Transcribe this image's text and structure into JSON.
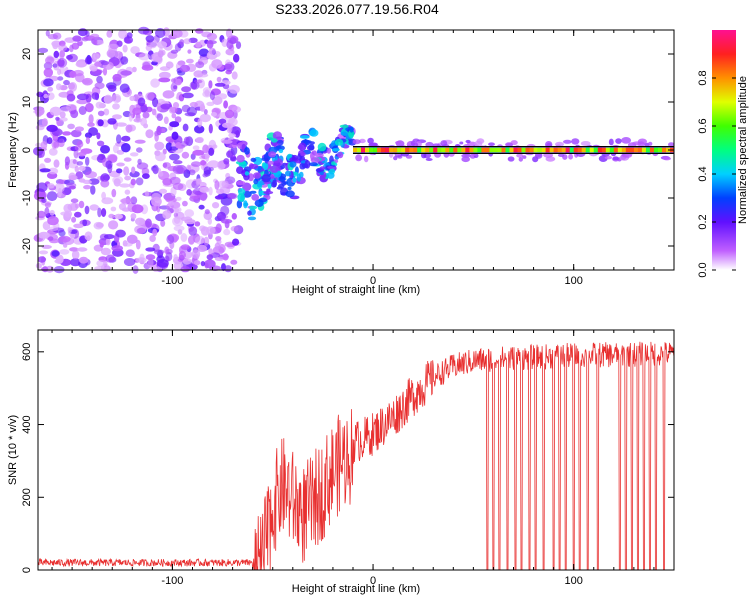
{
  "title": "S233.2026.077.19.56.R04",
  "chart_data": [
    {
      "type": "heatmap",
      "xlabel": "Height of straight line (km)",
      "ylabel": "Frequency (Hz)",
      "xlim": [
        -167,
        150
      ],
      "ylim": [
        -25,
        25
      ],
      "xticks": [
        -100,
        0,
        100
      ],
      "yticks": [
        -20,
        -10,
        0,
        10,
        20
      ],
      "colorbar": {
        "label": "Normalized spectral amplitude",
        "range": [
          0,
          1
        ],
        "ticks": [
          "0.0",
          "0.2",
          "0.4",
          "0.6",
          "0.8"
        ]
      },
      "description_values": {
        "noise_region_x": [
          -167,
          -67
        ],
        "transition_region_x": [
          -67,
          -10
        ],
        "carrier_frequency_hz": 0,
        "carrier_region_x": [
          -10,
          150
        ]
      }
    },
    {
      "type": "line",
      "xlabel": "Height of straight line (km)",
      "ylabel": "SNR (10 * v/v)",
      "xlim": [
        -167,
        150
      ],
      "ylim": [
        0,
        660
      ],
      "xticks": [
        -100,
        0,
        100
      ],
      "yticks": [
        0,
        200,
        400,
        600
      ],
      "series": [
        {
          "name": "SNR",
          "color": "#e83030",
          "points": [
            [
              -167,
              20
            ],
            [
              -60,
              20
            ],
            [
              -55,
              60
            ],
            [
              -50,
              200
            ],
            [
              -45,
              260
            ],
            [
              -40,
              220
            ],
            [
              -35,
              180
            ],
            [
              -30,
              210
            ],
            [
              -25,
              250
            ],
            [
              -20,
              300
            ],
            [
              -15,
              330
            ],
            [
              -10,
              350
            ],
            [
              -5,
              360
            ],
            [
              0,
              375
            ],
            [
              10,
              420
            ],
            [
              20,
              480
            ],
            [
              30,
              530
            ],
            [
              40,
              560
            ],
            [
              50,
              575
            ],
            [
              60,
              580
            ],
            [
              80,
              585
            ],
            [
              100,
              590
            ],
            [
              150,
              595
            ]
          ],
          "dropouts_x": [
            57,
            60,
            63,
            67,
            71,
            74,
            78,
            81,
            85,
            90,
            93,
            96,
            100,
            103,
            107,
            112,
            123,
            126,
            129,
            132,
            135,
            138,
            141,
            145
          ]
        }
      ]
    }
  ]
}
